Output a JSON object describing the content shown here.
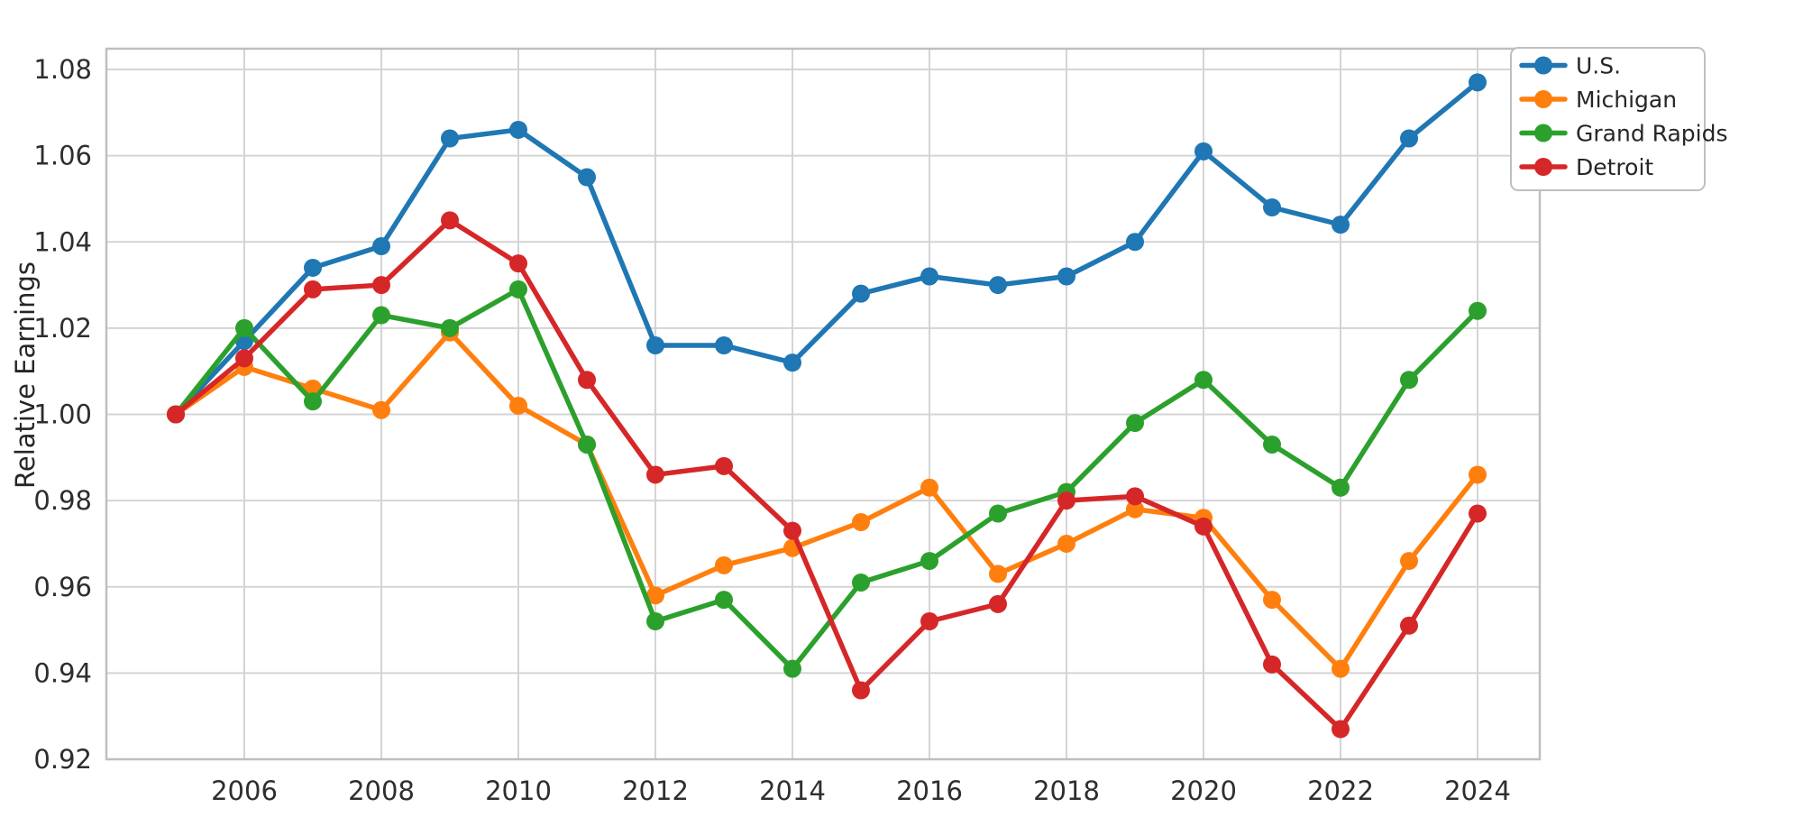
{
  "figure": {
    "background": "#ffffff",
    "grid_color": "#d4d4d4",
    "spine_color": "#bfbfbf",
    "tick_color": "#2e2e2e",
    "text_color": "#262626"
  },
  "chart_data": {
    "type": "line",
    "title": "",
    "xlabel": "",
    "ylabel": "Relative Earnings",
    "grid": true,
    "legend_position": "outside upper right",
    "xlim": [
      2004.0,
      2024.9
    ],
    "ylim": [
      0.92,
      1.08
    ],
    "xticks": [
      2006,
      2008,
      2010,
      2012,
      2014,
      2016,
      2018,
      2020,
      2022,
      2024
    ],
    "yticks": [
      "0.92",
      "0.94",
      "0.96",
      "0.98",
      "1.00",
      "1.02",
      "1.04",
      "1.06",
      "1.08"
    ],
    "x": [
      2005,
      2006,
      2007,
      2008,
      2009,
      2010,
      2011,
      2012,
      2013,
      2014,
      2015,
      2016,
      2017,
      2018,
      2019,
      2020,
      2021,
      2022,
      2023,
      2024
    ],
    "series": [
      {
        "name": "U.S.",
        "color": "#1f77b4",
        "values": [
          1.0,
          1.017,
          1.034,
          1.039,
          1.064,
          1.066,
          1.055,
          1.016,
          1.016,
          1.012,
          1.028,
          1.032,
          1.03,
          1.032,
          1.04,
          1.061,
          1.048,
          1.044,
          1.064,
          1.077
        ]
      },
      {
        "name": "Michigan",
        "color": "#ff7f0e",
        "values": [
          1.0,
          1.011,
          1.006,
          1.001,
          1.019,
          1.002,
          0.993,
          0.958,
          0.965,
          0.969,
          0.975,
          0.983,
          0.963,
          0.97,
          0.978,
          0.976,
          0.957,
          0.941,
          0.966,
          0.986
        ]
      },
      {
        "name": "Grand Rapids",
        "color": "#2ca02c",
        "values": [
          1.0,
          1.02,
          1.003,
          1.023,
          1.02,
          1.029,
          0.993,
          0.952,
          0.957,
          0.941,
          0.961,
          0.966,
          0.977,
          0.982,
          0.998,
          1.008,
          0.993,
          0.983,
          1.008,
          1.024
        ]
      },
      {
        "name": "Detroit",
        "color": "#d62728",
        "values": [
          1.0,
          1.013,
          1.029,
          1.03,
          1.045,
          1.035,
          1.008,
          0.986,
          0.988,
          0.973,
          0.936,
          0.952,
          0.956,
          0.98,
          0.981,
          0.974,
          0.942,
          0.927,
          0.951,
          0.977
        ]
      }
    ]
  }
}
